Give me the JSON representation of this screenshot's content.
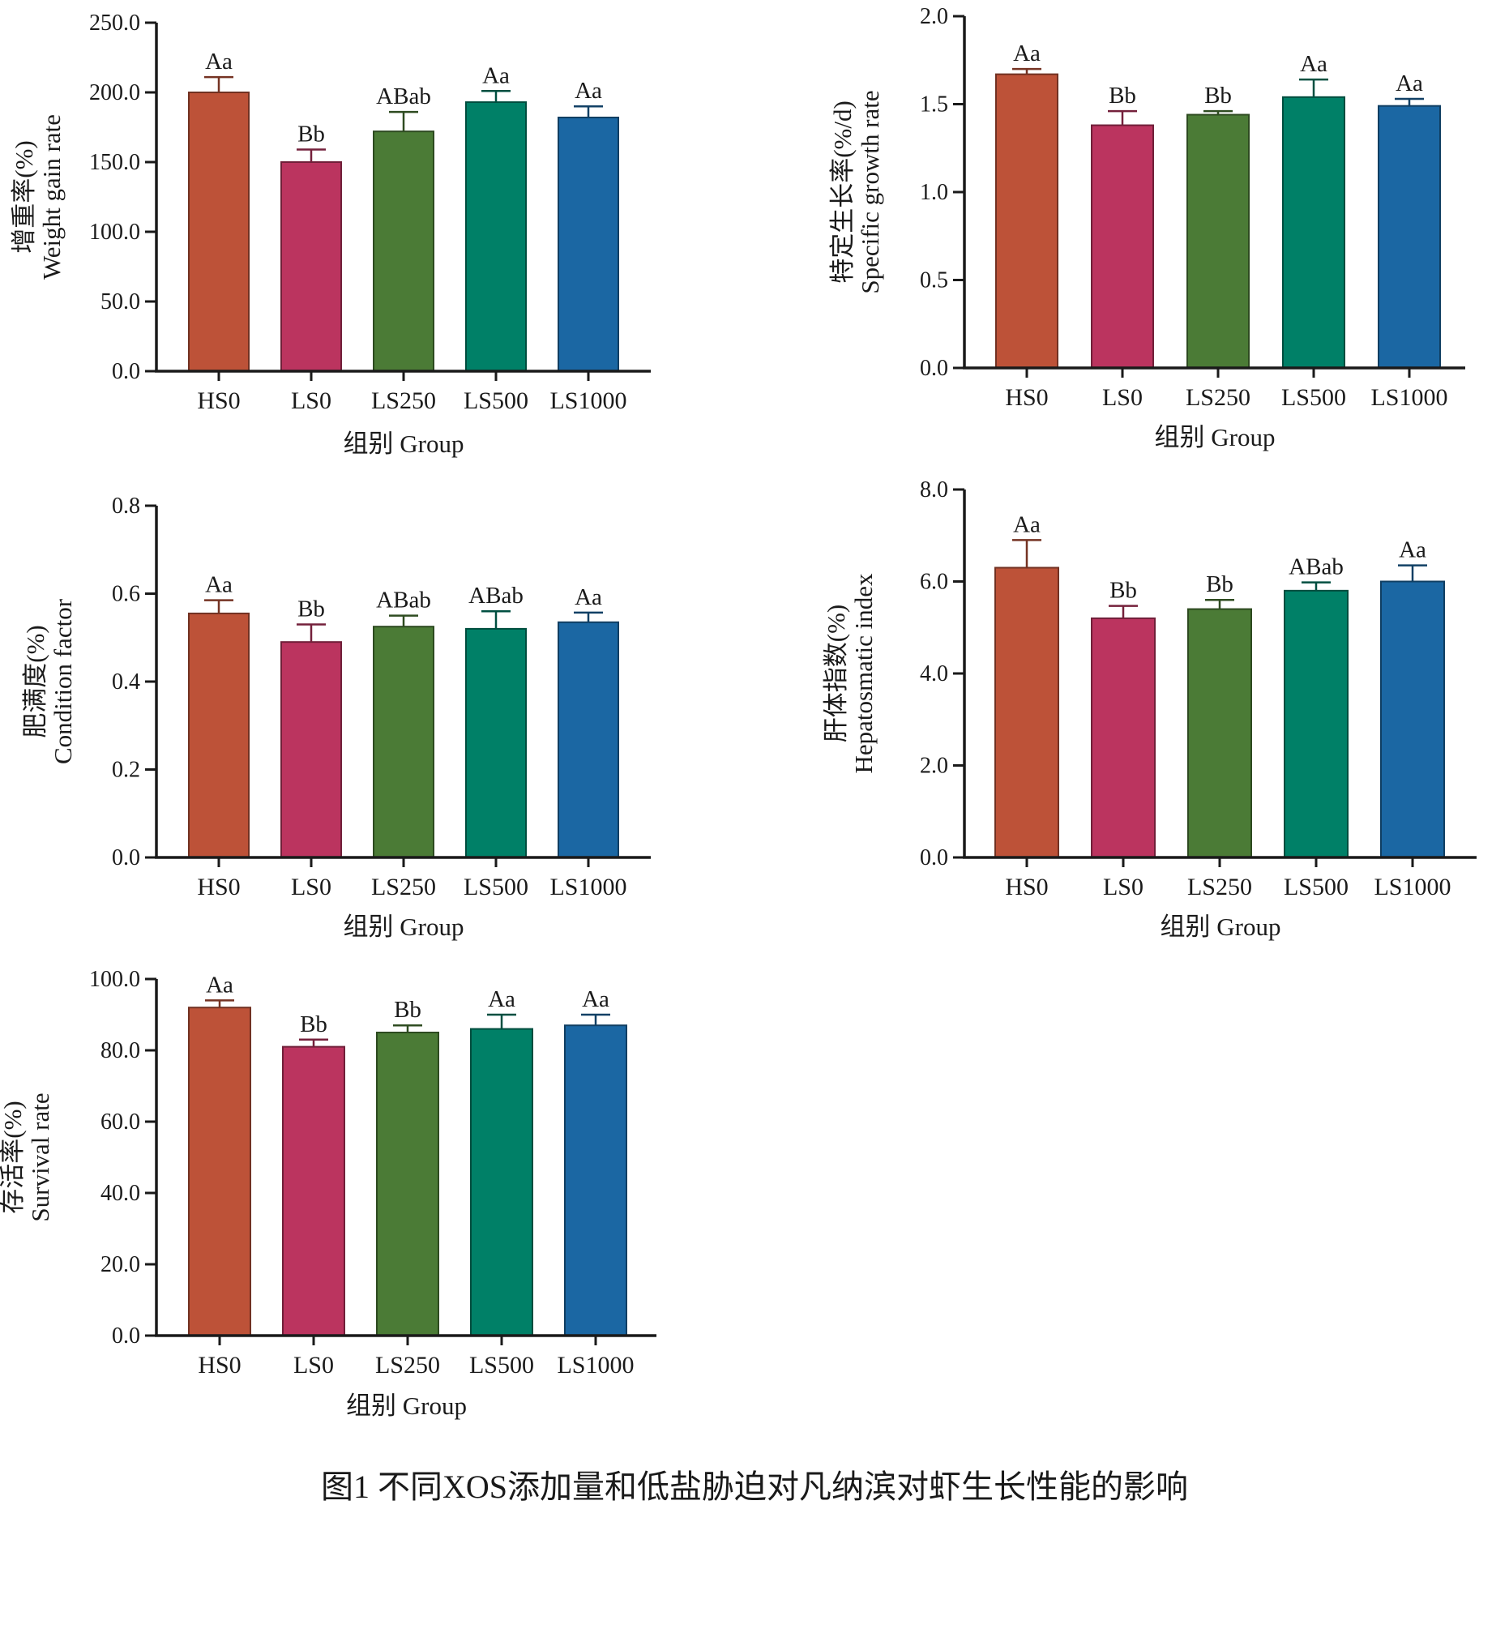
{
  "figure": {
    "caption": "图1 不同XOS添加量和低盐胁迫对凡纳滨对虾生长性能的影响"
  },
  "colors": {
    "HS0": "#bd5238",
    "LS0": "#bb345f",
    "LS250": "#4b7b36",
    "LS500": "#008067",
    "LS1000": "#1b67a3",
    "axis": "#1a1a1a"
  },
  "chart_data": [
    {
      "type": "bar",
      "ylabel_cn": "增重率(%)",
      "ylabel_en": "Weight gain rate",
      "xlabel": "组别 Group",
      "categories": [
        "HS0",
        "LS0",
        "LS250",
        "LS500",
        "LS1000"
      ],
      "values": [
        200,
        150,
        172,
        193,
        182
      ],
      "errors": [
        11,
        9,
        14,
        8,
        8
      ],
      "significance": [
        "Aa",
        "Bb",
        "ABab",
        "Aa",
        "Aa"
      ],
      "ylim": [
        0,
        250
      ],
      "yticks": [
        "0.0",
        "50.0",
        "100.0",
        "150.0",
        "200.0",
        "250.0"
      ]
    },
    {
      "type": "bar",
      "ylabel_cn": "特定生长率(%/d)",
      "ylabel_en": "Specific growth rate",
      "xlabel": "组别 Group",
      "categories": [
        "HS0",
        "LS0",
        "LS250",
        "LS500",
        "LS1000"
      ],
      "values": [
        1.67,
        1.38,
        1.44,
        1.54,
        1.49
      ],
      "errors": [
        0.03,
        0.08,
        0.02,
        0.1,
        0.04
      ],
      "significance": [
        "Aa",
        "Bb",
        "Bb",
        "Aa",
        "Aa"
      ],
      "ylim": [
        0,
        2.0
      ],
      "yticks": [
        "0.0",
        "0.5",
        "1.0",
        "1.5",
        "2.0"
      ]
    },
    {
      "type": "bar",
      "ylabel_cn": "肥满度(%)",
      "ylabel_en": "Condition factor",
      "xlabel": "组别 Group",
      "categories": [
        "HS0",
        "LS0",
        "LS250",
        "LS500",
        "LS1000"
      ],
      "values": [
        0.555,
        0.49,
        0.525,
        0.52,
        0.535
      ],
      "errors": [
        0.03,
        0.04,
        0.025,
        0.04,
        0.022
      ],
      "significance": [
        "Aa",
        "Bb",
        "ABab",
        "ABab",
        "Aa"
      ],
      "ylim": [
        0,
        0.8
      ],
      "yticks": [
        "0.0",
        "0.2",
        "0.4",
        "0.6",
        "0.8"
      ]
    },
    {
      "type": "bar",
      "ylabel_cn": "肝体指数(%)",
      "ylabel_en": "Hepatosmatic index",
      "xlabel": "组别 Group",
      "categories": [
        "HS0",
        "LS0",
        "LS250",
        "LS500",
        "LS1000"
      ],
      "values": [
        6.3,
        5.2,
        5.4,
        5.8,
        6.0
      ],
      "errors": [
        0.6,
        0.27,
        0.2,
        0.18,
        0.35
      ],
      "significance": [
        "Aa",
        "Bb",
        "Bb",
        "ABab",
        "Aa"
      ],
      "ylim": [
        0,
        8.0
      ],
      "yticks": [
        "0.0",
        "2.0",
        "4.0",
        "6.0",
        "8.0"
      ]
    },
    {
      "type": "bar",
      "ylabel_cn": "存活率(%)",
      "ylabel_en": "Survival rate",
      "xlabel": "组别 Group",
      "categories": [
        "HS0",
        "LS0",
        "LS250",
        "LS500",
        "LS1000"
      ],
      "values": [
        92,
        81,
        85,
        86,
        87
      ],
      "errors": [
        2,
        2,
        2,
        4,
        3
      ],
      "significance": [
        "Aa",
        "Bb",
        "Bb",
        "Aa",
        "Aa"
      ],
      "ylim": [
        0,
        100
      ],
      "yticks": [
        "0.0",
        "20.0",
        "40.0",
        "60.0",
        "80.0",
        "100.0"
      ]
    }
  ]
}
